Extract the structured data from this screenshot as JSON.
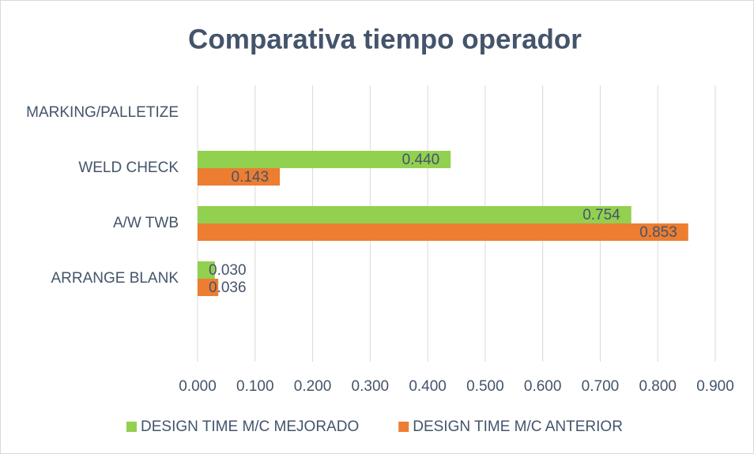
{
  "chart_data": {
    "type": "bar",
    "orientation": "horizontal",
    "title": "Comparativa tiempo operador",
    "categories": [
      "MARKING/PALLETIZE",
      "WELD CHECK",
      "A/W TWB",
      "ARRANGE BLANK",
      null
    ],
    "series": [
      {
        "name": "DESIGN TIME M/C MEJORADO",
        "color": "#92d050",
        "values": [
          null,
          0.44,
          0.754,
          0.03,
          null
        ],
        "value_labels": [
          null,
          "0.440",
          "0.754",
          "0.030",
          null
        ]
      },
      {
        "name": "DESIGN TIME M/C ANTERIOR",
        "color": "#ed7d31",
        "values": [
          null,
          0.143,
          0.853,
          0.036,
          null
        ],
        "value_labels": [
          null,
          "0.143",
          "0.853",
          "0.036",
          null
        ]
      }
    ],
    "xlim": [
      0,
      0.9
    ],
    "xticks": [
      {
        "value": 0,
        "label": "0.000"
      },
      {
        "value": 0.1,
        "label": "0.100"
      },
      {
        "value": 0.2,
        "label": "0.200"
      },
      {
        "value": 0.3,
        "label": "0.300"
      },
      {
        "value": 0.4,
        "label": "0.400"
      },
      {
        "value": 0.5,
        "label": "0.500"
      },
      {
        "value": 0.6,
        "label": "0.600"
      },
      {
        "value": 0.7,
        "label": "0.700"
      },
      {
        "value": 0.8,
        "label": "0.800"
      },
      {
        "value": 0.9,
        "label": "0.900"
      }
    ],
    "grid": true,
    "legend": "bottom"
  }
}
